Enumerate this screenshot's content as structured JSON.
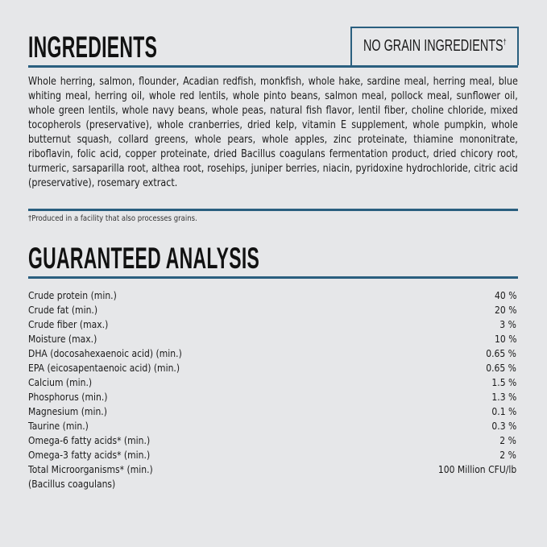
{
  "ingredients": {
    "title": "INGREDIENTS",
    "badge": "NO GRAIN INGREDIENTS",
    "badge_mark": "†",
    "text": "Whole herring, salmon, flounder, Acadian redfish, monkfish, whole hake, sardine meal, herring meal, blue whiting meal, herring oil, whole red lentils, whole pinto beans, salmon meal, pollock meal, sunflower oil, whole green lentils, whole navy beans, whole peas, natural fish flavor, lentil fiber, choline chloride, mixed tocopherols (preservative), whole cranberries, dried kelp, vitamin E supplement, whole pumpkin, whole butternut squash, collard greens, whole pears, whole apples, zinc proteinate, thiamine mononitrate, riboflavin, folic acid, copper proteinate, dried Bacillus coagulans fermentation product, dried chicory root, turmeric, sarsaparilla root, althea root, rosehips, juniper berries, niacin, pyridoxine hydrochloride, citric acid (preservative), rosemary extract.",
    "footnote": "†Produced in a facility that also processes grains."
  },
  "analysis": {
    "title": "GUARANTEED ANALYSIS",
    "rows": [
      {
        "name": "Crude protein (min.)",
        "value": "40 %"
      },
      {
        "name": "Crude fat (min.)",
        "value": "20 %"
      },
      {
        "name": "Crude fiber (max.)",
        "value": "3 %"
      },
      {
        "name": "Moisture (max.)",
        "value": "10 %"
      },
      {
        "name": "DHA (docosahexaenoic acid) (min.)",
        "value": "0.65 %"
      },
      {
        "name": "EPA (eicosapentaenoic acid) (min.)",
        "value": "0.65 %"
      },
      {
        "name": "Calcium (min.)",
        "value": "1.5 %"
      },
      {
        "name": "Phosphorus (min.)",
        "value": "1.3 %"
      },
      {
        "name": "Magnesium (min.)",
        "value": "0.1 %"
      },
      {
        "name": "Taurine (min.)",
        "value": "0.3 %"
      },
      {
        "name": "Omega-6 fatty acids* (min.)",
        "value": "2 %"
      },
      {
        "name": "Omega-3 fatty acids* (min.)",
        "value": "2 %"
      },
      {
        "name": "Total Microorganisms* (min.)",
        "value": "100 Million CFU/lb"
      },
      {
        "name": "(Bacillus coagulans)",
        "value": ""
      }
    ]
  },
  "colors": {
    "accent": "#2a5f7f",
    "background": "#e6e7e9"
  }
}
